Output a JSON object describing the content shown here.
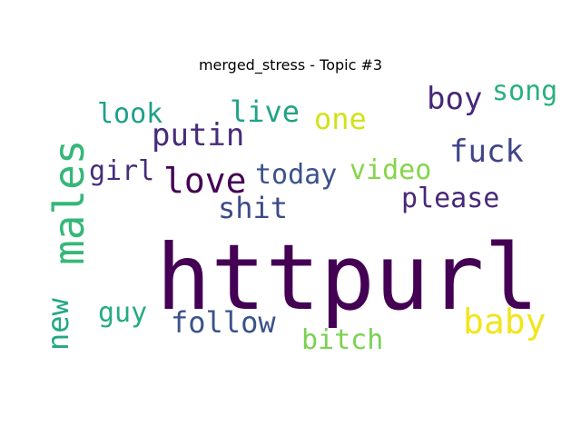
{
  "title": "merged_stress - Topic #3",
  "chart_data": {
    "type": "wordcloud",
    "title": "merged_stress - Topic #3",
    "words": [
      {
        "text": "httpurl",
        "color": "#440154"
      },
      {
        "text": "males",
        "color": "#35b779"
      },
      {
        "text": "love",
        "color": "#440154"
      },
      {
        "text": "baby",
        "color": "#f1e51d"
      },
      {
        "text": "follow",
        "color": "#3b528b"
      },
      {
        "text": "fuck",
        "color": "#414487"
      },
      {
        "text": "putin",
        "color": "#472c7a"
      },
      {
        "text": "shit",
        "color": "#3e4989"
      },
      {
        "text": "please",
        "color": "#482878"
      },
      {
        "text": "boy",
        "color": "#482878"
      },
      {
        "text": "song",
        "color": "#2ab07f"
      },
      {
        "text": "one",
        "color": "#d2e21b"
      },
      {
        "text": "live",
        "color": "#20a386"
      },
      {
        "text": "look",
        "color": "#1fa088"
      },
      {
        "text": "today",
        "color": "#3b528b"
      },
      {
        "text": "video",
        "color": "#86d549"
      },
      {
        "text": "girl",
        "color": "#472d7b"
      },
      {
        "text": "new",
        "color": "#22a884"
      },
      {
        "text": "guy",
        "color": "#25ab82"
      },
      {
        "text": "bitch",
        "color": "#7ad151"
      }
    ]
  }
}
